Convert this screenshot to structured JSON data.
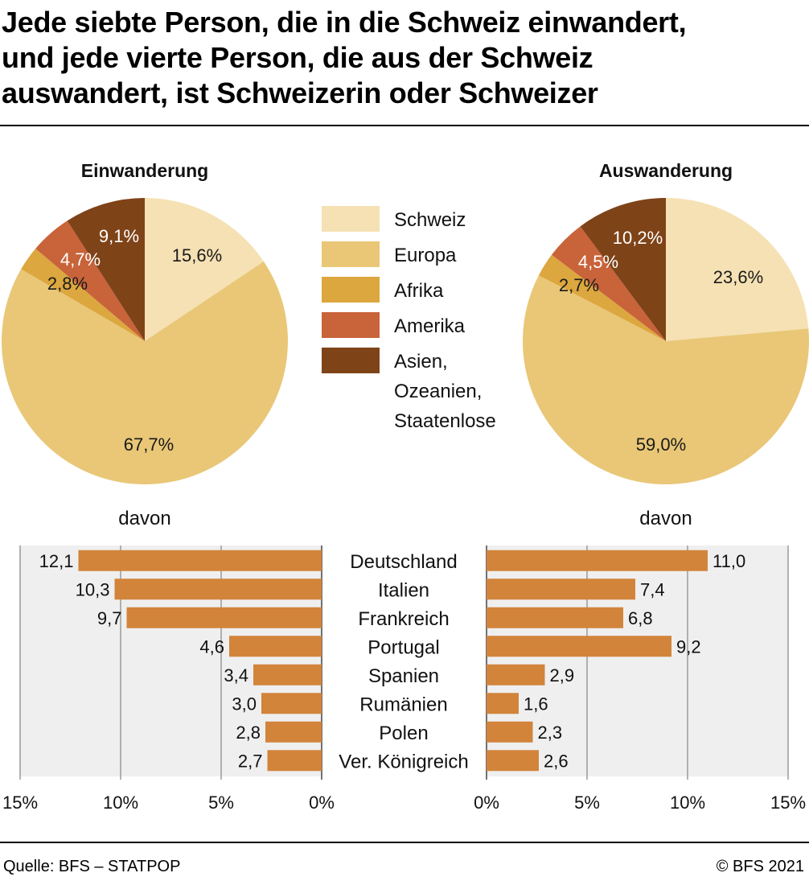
{
  "title_lines": [
    "Jede siebte Person, die in die Schweiz einwandert,",
    "und jede vierte Person, die aus der Schweiz",
    "auswandert, ist Schweizerin oder Schweizer"
  ],
  "source": "Quelle: BFS – STATPOP",
  "copyright": "© BFS 2021",
  "colors": {
    "schweiz": "#f5e1b3",
    "europa": "#e9c777",
    "afrika": "#dca73e",
    "amerika": "#c8633a",
    "asien": "#7f4318",
    "bar": "#d2843b",
    "panel_bg": "#efefef"
  },
  "legend": [
    {
      "key": "schweiz",
      "label_lines": [
        "Schweiz"
      ]
    },
    {
      "key": "europa",
      "label_lines": [
        "Europa"
      ]
    },
    {
      "key": "afrika",
      "label_lines": [
        "Afrika"
      ]
    },
    {
      "key": "amerika",
      "label_lines": [
        "Amerika"
      ]
    },
    {
      "key": "asien",
      "label_lines": [
        "Asien,",
        "Ozeanien,",
        "Staatenlose"
      ]
    }
  ],
  "chart_data": [
    {
      "type": "pie",
      "title": "Einwanderung",
      "slices": [
        {
          "key": "schweiz",
          "value": 15.6,
          "label": "15,6%"
        },
        {
          "key": "europa",
          "value": 67.7,
          "label": "67,7%"
        },
        {
          "key": "afrika",
          "value": 2.8,
          "label": "2,8%"
        },
        {
          "key": "amerika",
          "value": 4.7,
          "label": "4,7%"
        },
        {
          "key": "asien",
          "value": 9.1,
          "label": "9,1%"
        }
      ]
    },
    {
      "type": "pie",
      "title": "Auswanderung",
      "slices": [
        {
          "key": "schweiz",
          "value": 23.6,
          "label": "23,6%"
        },
        {
          "key": "europa",
          "value": 59.0,
          "label": "59,0%"
        },
        {
          "key": "afrika",
          "value": 2.7,
          "label": "2,7%"
        },
        {
          "key": "amerika",
          "value": 4.5,
          "label": "4,5%"
        },
        {
          "key": "asien",
          "value": 10.2,
          "label": "10,2%"
        }
      ]
    },
    {
      "type": "bar",
      "subtitle": "davon",
      "categories": [
        "Deutschland",
        "Italien",
        "Frankreich",
        "Portugal",
        "Spanien",
        "Rumänien",
        "Polen",
        "Ver. Königreich"
      ],
      "values": [
        12.1,
        10.3,
        9.7,
        4.6,
        3.4,
        3.0,
        2.8,
        2.7
      ],
      "value_labels": [
        "12,1",
        "10,3",
        "9,7",
        "4,6",
        "3,4",
        "3,0",
        "2,8",
        "2,7"
      ],
      "xlim": [
        0,
        15
      ],
      "ticks": [
        15,
        10,
        5,
        0
      ],
      "tick_labels": [
        "15%",
        "10%",
        "5%",
        "0%"
      ],
      "direction": "reversed",
      "grid": true
    },
    {
      "type": "bar",
      "subtitle": "davon",
      "categories": [
        "Deutschland",
        "Italien",
        "Frankreich",
        "Portugal",
        "Spanien",
        "Rumänien",
        "Polen",
        "Ver. Königreich"
      ],
      "values": [
        11.0,
        7.4,
        6.8,
        9.2,
        2.9,
        1.6,
        2.3,
        2.6
      ],
      "value_labels": [
        "11,0",
        "7,4",
        "6,8",
        "9,2",
        "2,9",
        "1,6",
        "2,3",
        "2,6"
      ],
      "xlim": [
        0,
        15
      ],
      "ticks": [
        0,
        5,
        10,
        15
      ],
      "tick_labels": [
        "0%",
        "5%",
        "10%",
        "15%"
      ],
      "grid": true
    }
  ]
}
